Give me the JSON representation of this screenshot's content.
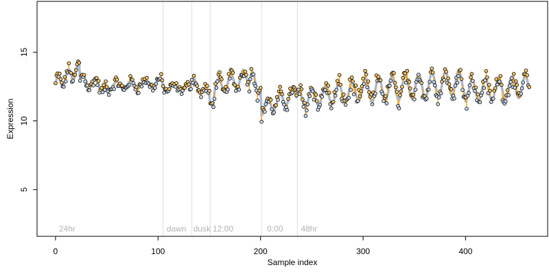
{
  "chart_data": {
    "type": "scatter",
    "xlabel": "Sample index",
    "ylabel": "Expression",
    "xlim": [
      -18,
      480
    ],
    "ylim": [
      1.6,
      18.7
    ],
    "x_ticks": [
      0,
      100,
      200,
      300,
      400
    ],
    "y_ticks": [
      5,
      10,
      15
    ],
    "colors": {
      "frame": "#000000",
      "fit_line": "#a9b8d0",
      "residual_segment": "#f5a623",
      "point_fill": "#c9d6ea",
      "point_fill_up": "#f3c46b",
      "vline": "#dddddd",
      "annotation": "#b3b3b3"
    },
    "vertical_lines": [
      105,
      133,
      151,
      201,
      236
    ],
    "annotations": [
      {
        "label": "24hr",
        "x": 2
      },
      {
        "label": "dawn",
        "x": 107
      },
      {
        "label": "dusk",
        "x": 133
      },
      {
        "label": "12:00",
        "x": 152
      },
      {
        "label": "0:00",
        "x": 205
      },
      {
        "label": "48hr",
        "x": 238
      }
    ],
    "segments": [
      {
        "x0": 0,
        "x1": 24,
        "base": 12.7,
        "end": 13.8,
        "amp": 0.5,
        "period": 10,
        "noise": 0.35
      },
      {
        "x0": 24,
        "x1": 50,
        "base": 13.0,
        "end": 12.4,
        "amp": 0.4,
        "period": 12,
        "noise": 0.35
      },
      {
        "x0": 50,
        "x1": 105,
        "base": 12.5,
        "end": 12.8,
        "amp": 0.3,
        "period": 14,
        "noise": 0.3
      },
      {
        "x0": 105,
        "x1": 133,
        "base": 12.4,
        "end": 12.4,
        "amp": 0.2,
        "period": 14,
        "noise": 0.25
      },
      {
        "x0": 133,
        "x1": 151,
        "base": 12.8,
        "end": 11.8,
        "amp": 0.4,
        "period": 12,
        "noise": 0.3
      },
      {
        "x0": 151,
        "x1": 155,
        "base": 11.2,
        "end": 11.0,
        "amp": 0.1,
        "period": 10,
        "noise": 0.15
      },
      {
        "x0": 155,
        "x1": 190,
        "base": 12.4,
        "end": 13.3,
        "amp": 0.6,
        "period": 12,
        "noise": 0.4
      },
      {
        "x0": 190,
        "x1": 201,
        "base": 13.2,
        "end": 12.2,
        "amp": 0.6,
        "period": 10,
        "noise": 0.4
      },
      {
        "x0": 201,
        "x1": 236,
        "base": 10.9,
        "end": 12.0,
        "amp": 0.5,
        "period": 12,
        "noise": 0.4
      },
      {
        "x0": 236,
        "x1": 300,
        "base": 11.6,
        "end": 12.2,
        "amp": 0.7,
        "period": 13,
        "noise": 0.55
      },
      {
        "x0": 300,
        "x1": 400,
        "base": 12.2,
        "end": 12.8,
        "amp": 0.9,
        "period": 13,
        "noise": 0.5
      },
      {
        "x0": 400,
        "x1": 462,
        "base": 12.2,
        "end": 12.5,
        "amp": 0.8,
        "period": 13,
        "noise": 0.5
      }
    ],
    "n_points": 463
  }
}
